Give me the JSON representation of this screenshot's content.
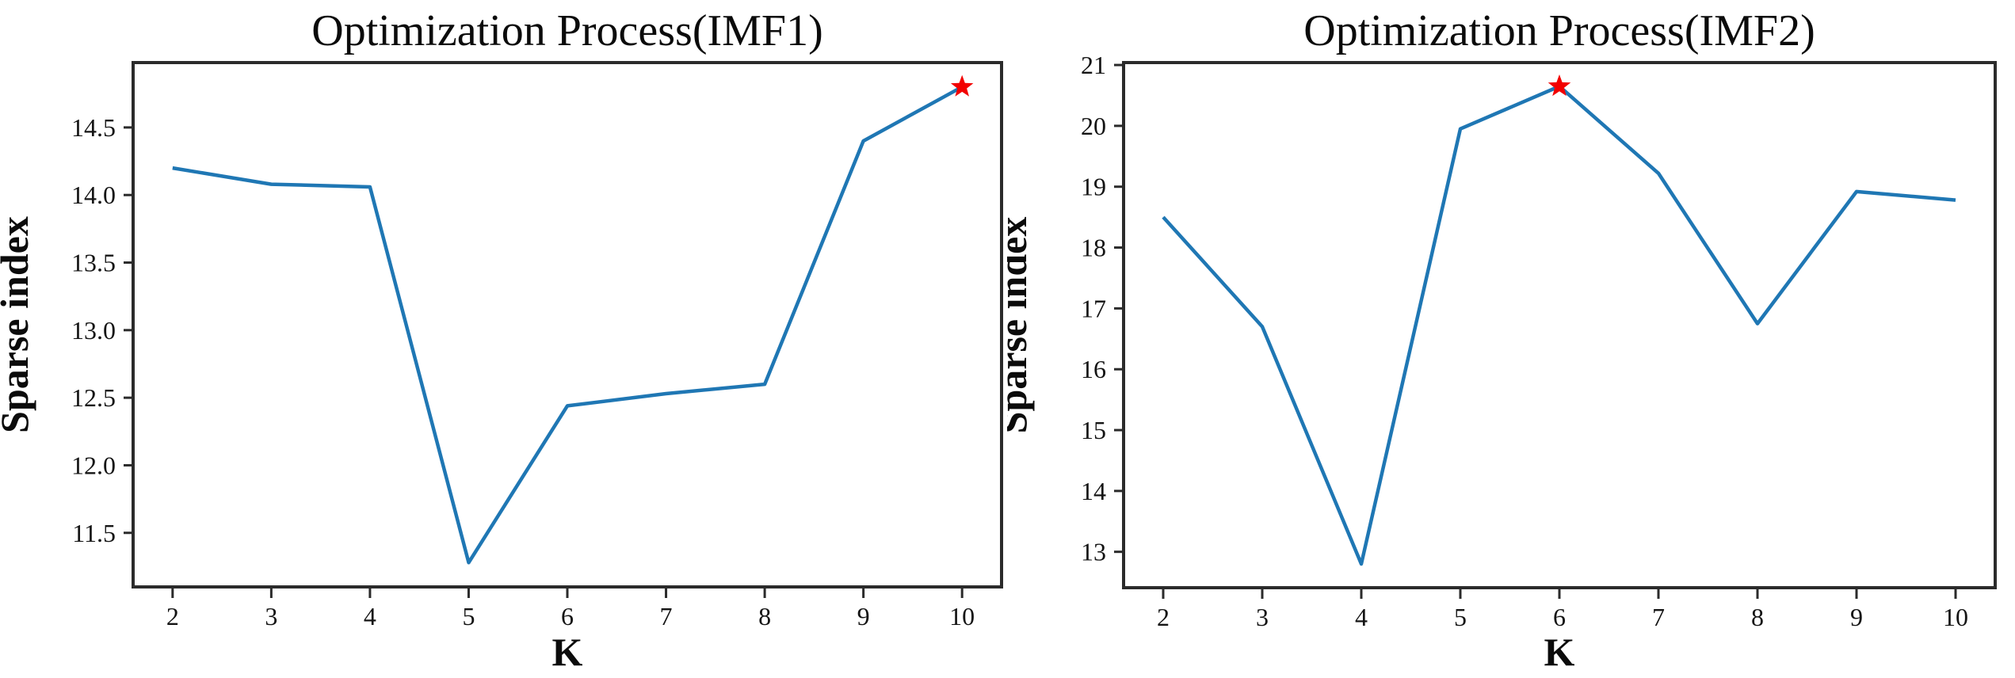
{
  "figure": {
    "background_color": "#ffffff",
    "line_color": "#1f77b4",
    "marker_color": "#f20000",
    "axis_color": "#2b2b2b",
    "text_color": "#0b0b0b"
  },
  "chart_data": [
    {
      "type": "line",
      "title": "Optimization Process(IMF1)",
      "xlabel": "K",
      "ylabel": "Sparse index",
      "x": [
        2,
        3,
        4,
        5,
        6,
        7,
        8,
        9,
        10
      ],
      "y": [
        14.2,
        14.08,
        14.06,
        11.28,
        12.44,
        12.53,
        12.6,
        14.4,
        14.8
      ],
      "xlim": [
        1.6,
        10.4
      ],
      "ylim": [
        11.1,
        14.98
      ],
      "xticks": [
        2,
        3,
        4,
        5,
        6,
        7,
        8,
        9,
        10
      ],
      "xtick_labels": [
        "2",
        "3",
        "4",
        "5",
        "6",
        "7",
        "8",
        "9",
        "10"
      ],
      "yticks": [
        11.5,
        12.0,
        12.5,
        13.0,
        13.5,
        14.0,
        14.5
      ],
      "ytick_labels": [
        "11.5",
        "12.0",
        "12.5",
        "13.0",
        "13.5",
        "14.0",
        "14.5"
      ],
      "grid": false,
      "legend": null,
      "best_point": {
        "x": 10,
        "y": 14.8,
        "marker": "red-star"
      }
    },
    {
      "type": "line",
      "title": "Optimization Process(IMF2)",
      "xlabel": "K",
      "ylabel": "Sparse index",
      "x": [
        2,
        3,
        4,
        5,
        6,
        7,
        8,
        9,
        10
      ],
      "y": [
        18.5,
        16.7,
        12.8,
        19.95,
        20.65,
        19.22,
        16.75,
        18.92,
        18.78
      ],
      "xlim": [
        1.6,
        10.4
      ],
      "ylim": [
        12.41,
        21.04
      ],
      "xticks": [
        2,
        3,
        4,
        5,
        6,
        7,
        8,
        9,
        10
      ],
      "xtick_labels": [
        "2",
        "3",
        "4",
        "5",
        "6",
        "7",
        "8",
        "9",
        "10"
      ],
      "yticks": [
        13,
        14,
        15,
        16,
        17,
        18,
        19,
        20,
        21
      ],
      "ytick_labels": [
        "13",
        "14",
        "15",
        "16",
        "17",
        "18",
        "19",
        "20",
        "21"
      ],
      "grid": false,
      "legend": null,
      "best_point": {
        "x": 6,
        "y": 20.65,
        "marker": "red-star"
      }
    }
  ]
}
